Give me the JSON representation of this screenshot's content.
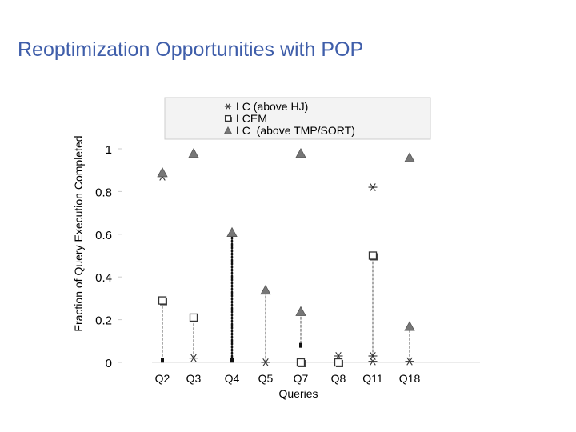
{
  "slide": {
    "title": "Reoptimization Opportunities with POP"
  },
  "chart_data": {
    "type": "scatter",
    "title": "",
    "xlabel": "Queries",
    "ylabel": "Fraction of Query Execution Completed",
    "categories": [
      "Q2",
      "Q3",
      "Q4",
      "Q5",
      "Q7",
      "Q8",
      "Q11",
      "Q18"
    ],
    "ylim": [
      0,
      1
    ],
    "yticks": [
      0,
      0.2,
      0.4,
      0.6,
      0.8,
      1
    ],
    "ytick_labels": [
      "0",
      "0.2",
      "0.4",
      "0.6",
      "0.8",
      "1"
    ],
    "grid": false,
    "legend_position": "top",
    "series": [
      {
        "name": "LC (above HJ)",
        "marker": "asterisk",
        "color": "#333333",
        "points": [
          {
            "x": "Q2",
            "y": 0.87
          },
          {
            "x": "Q3",
            "y": 0.02
          },
          {
            "x": "Q5",
            "y": 0.0
          },
          {
            "x": "Q8",
            "y": 0.03
          },
          {
            "x": "Q8",
            "y": 0.0
          },
          {
            "x": "Q11",
            "y": 0.82
          },
          {
            "x": "Q11",
            "y": 0.03
          },
          {
            "x": "Q11",
            "y": 0.005
          },
          {
            "x": "Q18",
            "y": 0.005
          }
        ]
      },
      {
        "name": "LCEM",
        "marker": "square",
        "color": "#333333",
        "points": [
          {
            "x": "Q2",
            "y": 0.29
          },
          {
            "x": "Q3",
            "y": 0.21
          },
          {
            "x": "Q7",
            "y": 0.0
          },
          {
            "x": "Q8",
            "y": 0.0
          },
          {
            "x": "Q11",
            "y": 0.5
          }
        ]
      },
      {
        "name": "LC  (above TMP/SORT)",
        "marker": "triangle",
        "color": "#777777",
        "points": [
          {
            "x": "Q2",
            "y": 0.89
          },
          {
            "x": "Q3",
            "y": 0.98
          },
          {
            "x": "Q4",
            "y": 0.61
          },
          {
            "x": "Q5",
            "y": 0.34
          },
          {
            "x": "Q7",
            "y": 0.98
          },
          {
            "x": "Q7",
            "y": 0.24
          },
          {
            "x": "Q18",
            "y": 0.96
          },
          {
            "x": "Q18",
            "y": 0.17
          }
        ]
      }
    ],
    "ranges": [
      {
        "x": "Q2",
        "from": 0.01,
        "to": 0.29,
        "style": "dashed"
      },
      {
        "x": "Q3",
        "from": 0.02,
        "to": 0.21,
        "style": "dashed"
      },
      {
        "x": "Q4",
        "from": 0.01,
        "to": 0.61,
        "style": "dotted"
      },
      {
        "x": "Q5",
        "from": 0.0,
        "to": 0.34,
        "style": "dashed"
      },
      {
        "x": "Q7",
        "from": 0.07,
        "to": 0.24,
        "style": "dashed"
      },
      {
        "x": "Q11",
        "from": 0.03,
        "to": 0.5,
        "style": "dashed"
      },
      {
        "x": "Q18",
        "from": 0.01,
        "to": 0.17,
        "style": "dashed"
      }
    ],
    "small_markers": [
      {
        "x": "Q2",
        "y": 0.01
      },
      {
        "x": "Q4",
        "y": 0.01
      },
      {
        "x": "Q7",
        "y": 0.08
      }
    ]
  }
}
